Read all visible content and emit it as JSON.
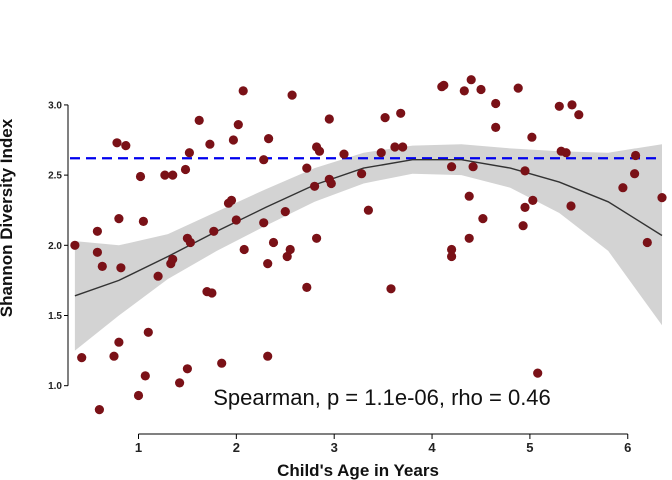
{
  "chart_data": {
    "type": "scatter",
    "title": "",
    "xlabel": "Child's Age in Years",
    "ylabel": "Shannon Diversity Index",
    "xlim": [
      0.3,
      6.35
    ],
    "ylim": [
      0.72,
      3.32
    ],
    "x_ticks": [
      1,
      2,
      3,
      4,
      5,
      6
    ],
    "x_tick_labels": [
      "1",
      "2",
      "3",
      "4",
      "5",
      "6"
    ],
    "y_ticks": [
      1.0,
      1.5,
      2.0,
      2.5,
      3.0
    ],
    "y_tick_labels": [
      "1.0",
      "1.5",
      "2.0",
      "2.5",
      "3.0"
    ],
    "grid": false,
    "legend": "none",
    "annotation": "Spearman, p = 1.1e-06, rho = 0.46",
    "reference_line": {
      "y": 2.62,
      "style": "dashed",
      "color": "#0000ee"
    },
    "colors": {
      "points": "#7a1117",
      "trend": "#333333",
      "band": "#d3d3d3",
      "axis": "#000000"
    },
    "series": [
      {
        "name": "samples",
        "points": [
          [
            0.35,
            2.0
          ],
          [
            0.42,
            1.2
          ],
          [
            0.58,
            2.1
          ],
          [
            0.58,
            1.95
          ],
          [
            0.6,
            0.83
          ],
          [
            0.63,
            1.85
          ],
          [
            0.75,
            1.21
          ],
          [
            0.78,
            2.73
          ],
          [
            0.8,
            2.19
          ],
          [
            0.8,
            1.31
          ],
          [
            0.82,
            1.84
          ],
          [
            0.87,
            2.71
          ],
          [
            1.0,
            0.93
          ],
          [
            1.02,
            2.49
          ],
          [
            1.05,
            2.17
          ],
          [
            1.07,
            1.07
          ],
          [
            1.1,
            1.38
          ],
          [
            1.2,
            1.78
          ],
          [
            1.27,
            2.5
          ],
          [
            1.33,
            1.87
          ],
          [
            1.35,
            2.5
          ],
          [
            1.35,
            1.9
          ],
          [
            1.42,
            1.02
          ],
          [
            1.48,
            2.54
          ],
          [
            1.5,
            2.05
          ],
          [
            1.52,
            2.66
          ],
          [
            1.5,
            1.12
          ],
          [
            1.53,
            2.02
          ],
          [
            1.62,
            2.89
          ],
          [
            1.7,
            1.67
          ],
          [
            1.73,
            2.72
          ],
          [
            1.75,
            1.66
          ],
          [
            1.77,
            2.1
          ],
          [
            1.85,
            1.16
          ],
          [
            1.92,
            2.3
          ],
          [
            1.95,
            2.32
          ],
          [
            1.97,
            2.75
          ],
          [
            2.0,
            2.18
          ],
          [
            2.02,
            2.86
          ],
          [
            2.07,
            3.1
          ],
          [
            2.08,
            1.97
          ],
          [
            2.28,
            2.16
          ],
          [
            2.28,
            2.61
          ],
          [
            2.32,
            1.21
          ],
          [
            2.32,
            1.87
          ],
          [
            2.33,
            2.76
          ],
          [
            2.38,
            2.02
          ],
          [
            2.5,
            2.24
          ],
          [
            2.52,
            1.92
          ],
          [
            2.55,
            1.97
          ],
          [
            2.57,
            3.07
          ],
          [
            2.72,
            2.55
          ],
          [
            2.72,
            1.7
          ],
          [
            2.8,
            2.42
          ],
          [
            2.82,
            2.7
          ],
          [
            2.82,
            2.05
          ],
          [
            2.85,
            2.67
          ],
          [
            2.95,
            2.9
          ],
          [
            2.95,
            2.47
          ],
          [
            2.97,
            2.44
          ],
          [
            3.1,
            2.65
          ],
          [
            3.28,
            2.51
          ],
          [
            3.35,
            2.25
          ],
          [
            3.48,
            2.66
          ],
          [
            3.52,
            2.91
          ],
          [
            3.58,
            1.69
          ],
          [
            3.62,
            2.7
          ],
          [
            3.68,
            2.94
          ],
          [
            3.7,
            2.7
          ],
          [
            4.1,
            3.13
          ],
          [
            4.12,
            3.14
          ],
          [
            4.2,
            2.56
          ],
          [
            4.2,
            1.97
          ],
          [
            4.2,
            1.92
          ],
          [
            4.33,
            3.1
          ],
          [
            4.38,
            2.35
          ],
          [
            4.38,
            2.05
          ],
          [
            4.4,
            3.18
          ],
          [
            4.42,
            2.56
          ],
          [
            4.5,
            3.11
          ],
          [
            4.52,
            2.19
          ],
          [
            4.65,
            2.84
          ],
          [
            4.65,
            3.01
          ],
          [
            4.88,
            3.12
          ],
          [
            4.93,
            2.14
          ],
          [
            4.95,
            2.53
          ],
          [
            4.95,
            2.27
          ],
          [
            5.02,
            2.77
          ],
          [
            5.03,
            2.32
          ],
          [
            5.08,
            1.09
          ],
          [
            5.3,
            2.99
          ],
          [
            5.32,
            2.67
          ],
          [
            5.37,
            2.66
          ],
          [
            5.42,
            2.28
          ],
          [
            5.43,
            3.0
          ],
          [
            5.5,
            2.93
          ],
          [
            5.95,
            2.41
          ],
          [
            6.07,
            2.51
          ],
          [
            6.08,
            2.64
          ],
          [
            6.2,
            2.02
          ],
          [
            6.35,
            2.34
          ]
        ]
      },
      {
        "name": "loess-fit",
        "x": [
          0.35,
          0.8,
          1.3,
          1.8,
          2.3,
          2.8,
          3.3,
          3.8,
          4.3,
          4.8,
          5.3,
          5.8,
          6.35
        ],
        "y": [
          1.64,
          1.75,
          1.92,
          2.1,
          2.27,
          2.43,
          2.55,
          2.61,
          2.61,
          2.55,
          2.45,
          2.31,
          2.07
        ],
        "lower": [
          1.25,
          1.5,
          1.76,
          1.96,
          2.14,
          2.31,
          2.44,
          2.51,
          2.5,
          2.41,
          2.23,
          1.96,
          1.43
        ],
        "upper": [
          2.03,
          2.0,
          2.08,
          2.24,
          2.4,
          2.55,
          2.66,
          2.71,
          2.72,
          2.69,
          2.67,
          2.66,
          2.72
        ]
      }
    ]
  }
}
